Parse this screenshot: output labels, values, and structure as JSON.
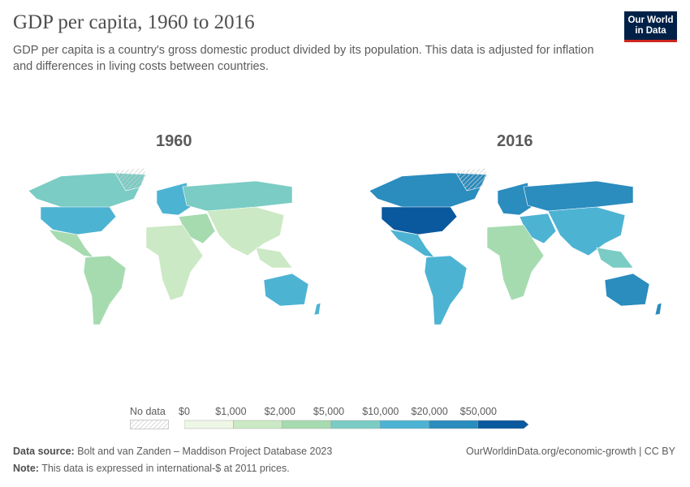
{
  "header": {
    "title": "GDP per capita, 1960 to 2016",
    "subtitle": "GDP per capita is a country's gross domestic product divided by its population. This data is adjusted for inflation and differences in living costs between countries.",
    "logo": "Our World in Data"
  },
  "chart_data": {
    "type": "choropleth map",
    "panels": [
      "1960",
      "2016"
    ],
    "legend": {
      "no_data_label": "No data",
      "bins": [
        "$0",
        "$1,000",
        "$2,000",
        "$5,000",
        "$10,000",
        "$20,000",
        "$50,000"
      ],
      "colors": [
        "#eef7e6",
        "#cbe9c4",
        "#a6dbb0",
        "#7accc4",
        "#4db3d3",
        "#2b8cbe",
        "#0a589e"
      ]
    }
  },
  "footer": {
    "source_label": "Data source:",
    "source": "Bolt and van Zanden – Maddison Project Database 2023",
    "url": "OurWorldinData.org/economic-growth | CC BY",
    "note_label": "Note:",
    "note": "This data is expressed in international-$ at 2011 prices."
  }
}
